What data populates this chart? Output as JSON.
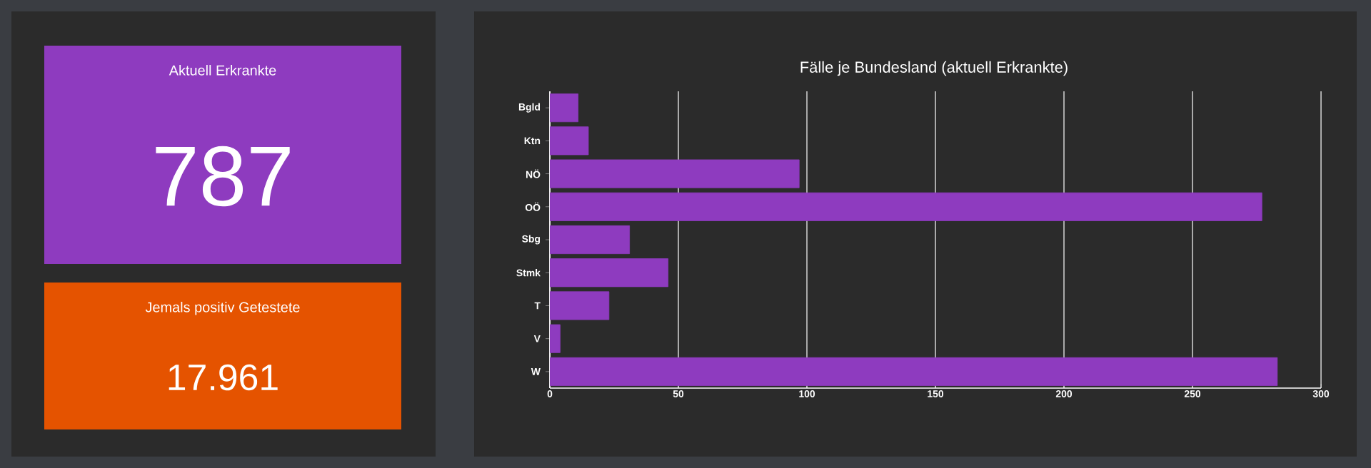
{
  "chart_data": [
    {
      "type": "other",
      "title": "Aktuell Erkrankte",
      "annotations": [
        "787"
      ],
      "color": "#8e3bbf"
    },
    {
      "type": "other",
      "title": "Jemals positiv Getestete",
      "annotations": [
        "17.961"
      ],
      "color": "#e55300"
    },
    {
      "type": "bar",
      "orientation": "horizontal",
      "title": "Fälle je Bundesland (aktuell Erkrankte)",
      "categories": [
        "Bgld",
        "Ktn",
        "NÖ",
        "OÖ",
        "Sbg",
        "Stmk",
        "T",
        "V",
        "W"
      ],
      "values": [
        11,
        15,
        97,
        277,
        31,
        46,
        23,
        4,
        283
      ],
      "color": "#8e3bbf",
      "xlim": [
        0,
        300
      ],
      "xticks": [
        0,
        50,
        100,
        150,
        200,
        250,
        300
      ],
      "grid": "x"
    }
  ]
}
